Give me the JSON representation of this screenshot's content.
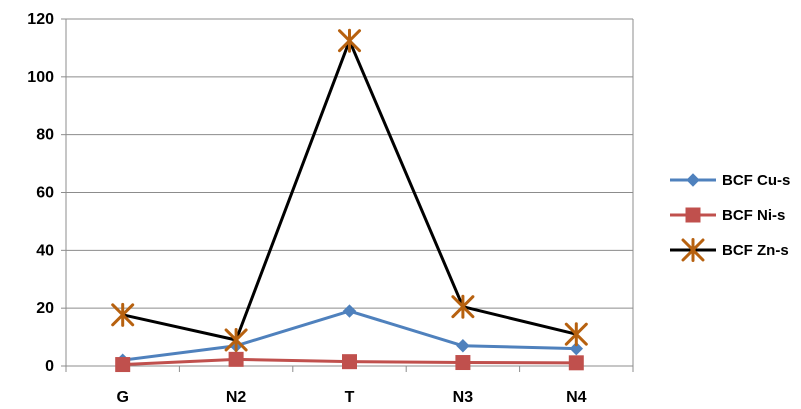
{
  "chart_data": {
    "type": "line",
    "title": "",
    "xlabel": "",
    "ylabel": "",
    "categories": [
      "G",
      "N2",
      "T",
      "N3",
      "N4"
    ],
    "ylim": [
      0,
      120
    ],
    "yticks": [
      0,
      20,
      40,
      60,
      80,
      100,
      120
    ],
    "grid": true,
    "legend_position": "right",
    "series": [
      {
        "name": "BCF Cu-s",
        "color": "#4F81BD",
        "marker": "diamond",
        "values": [
          2,
          7,
          19,
          7,
          6
        ]
      },
      {
        "name": "BCF Ni-s",
        "color": "#C0504D",
        "marker": "square",
        "values": [
          0.5,
          2.3,
          1.5,
          1.2,
          1.1
        ]
      },
      {
        "name": "BCF Zn-s",
        "color": "#000000",
        "marker": "star",
        "marker_color": "#B7610F",
        "values": [
          17.7,
          9,
          112.5,
          20.5,
          11
        ]
      }
    ]
  }
}
